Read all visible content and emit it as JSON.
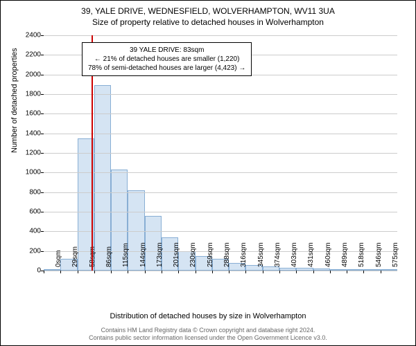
{
  "title_line1": "39, YALE DRIVE, WEDNESFIELD, WOLVERHAMPTON, WV11 3UA",
  "title_line2": "Size of property relative to detached houses in Wolverhampton",
  "y_label": "Number of detached properties",
  "x_label": "Distribution of detached houses by size in Wolverhampton",
  "chart": {
    "type": "histogram",
    "ylim": [
      0,
      2400
    ],
    "ytick_step": 200,
    "x_categories": [
      "0sqm",
      "29sqm",
      "58sqm",
      "86sqm",
      "115sqm",
      "144sqm",
      "173sqm",
      "201sqm",
      "230sqm",
      "259sqm",
      "288sqm",
      "316sqm",
      "345sqm",
      "374sqm",
      "403sqm",
      "431sqm",
      "460sqm",
      "489sqm",
      "518sqm",
      "546sqm",
      "575sqm"
    ],
    "values": [
      0,
      120,
      1350,
      1890,
      1030,
      820,
      560,
      340,
      200,
      150,
      120,
      80,
      60,
      40,
      30,
      25,
      20,
      15,
      15,
      10,
      10
    ],
    "bar_fill": "#d5e4f3",
    "bar_stroke": "#88aed4",
    "grid_color": "#cccccc",
    "background_color": "#ffffff",
    "reference_line": {
      "at_index": 2.85,
      "color": "#cc0000"
    },
    "label_fontsize": 11,
    "tick_fontsize": 10
  },
  "annotation": {
    "line1": "39 YALE DRIVE: 83sqm",
    "line2": "← 21% of detached houses are smaller (1,220)",
    "line3": "78% of semi-detached houses are larger (4,423) →",
    "border_color": "#000000",
    "background": "#ffffff"
  },
  "footer_line1": "Contains HM Land Registry data © Crown copyright and database right 2024.",
  "footer_line2": "Contains public sector information licensed under the Open Government Licence v3.0."
}
